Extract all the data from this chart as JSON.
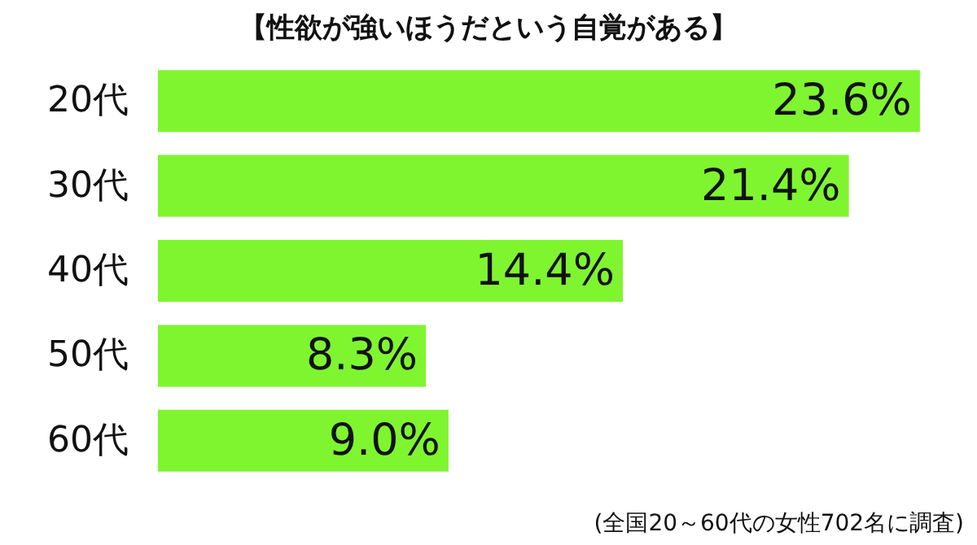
{
  "chart_data": {
    "type": "bar",
    "orientation": "horizontal",
    "title": "【性欲が強いほうだという自覚がある】",
    "categories": [
      "20代",
      "30代",
      "40代",
      "50代",
      "60代"
    ],
    "values": [
      23.6,
      21.4,
      14.4,
      8.3,
      9.0
    ],
    "value_labels": [
      "23.6%",
      "21.4%",
      "14.4%",
      "8.3%",
      "9.0%"
    ],
    "color": "#7ff530",
    "annotations": [
      "(全国20～60代の女性702名に調査)"
    ]
  }
}
